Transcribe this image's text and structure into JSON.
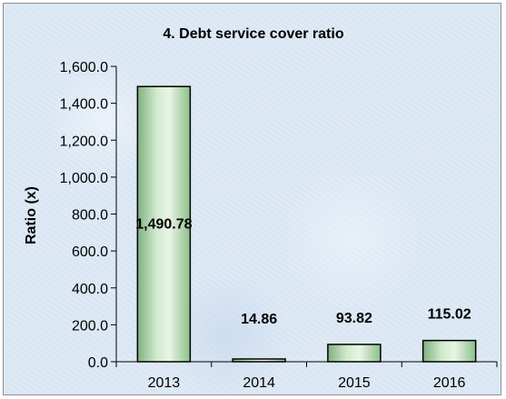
{
  "chart_data": {
    "type": "bar",
    "title": "4. Debt service cover ratio",
    "xlabel": "",
    "ylabel": "Ratio (x)",
    "categories": [
      "2013",
      "2014",
      "2015",
      "2016"
    ],
    "values": [
      1490.78,
      14.86,
      93.82,
      115.02
    ],
    "data_labels": [
      "1,490.78",
      "14.86",
      "93.82",
      "115.02"
    ],
    "ylim": [
      0,
      1600
    ],
    "y_ticks": [
      0,
      200,
      400,
      600,
      800,
      1000,
      1200,
      1400,
      1600
    ],
    "y_tick_labels": [
      "0.0",
      "200.0",
      "400.0",
      "600.0",
      "800.0",
      "1,000.0",
      "1,200.0",
      "1,400.0",
      "1,600.0"
    ],
    "grid": false,
    "legend": "none",
    "bar_color": "#b9dcb6",
    "bar_edge_color": "#000000"
  }
}
